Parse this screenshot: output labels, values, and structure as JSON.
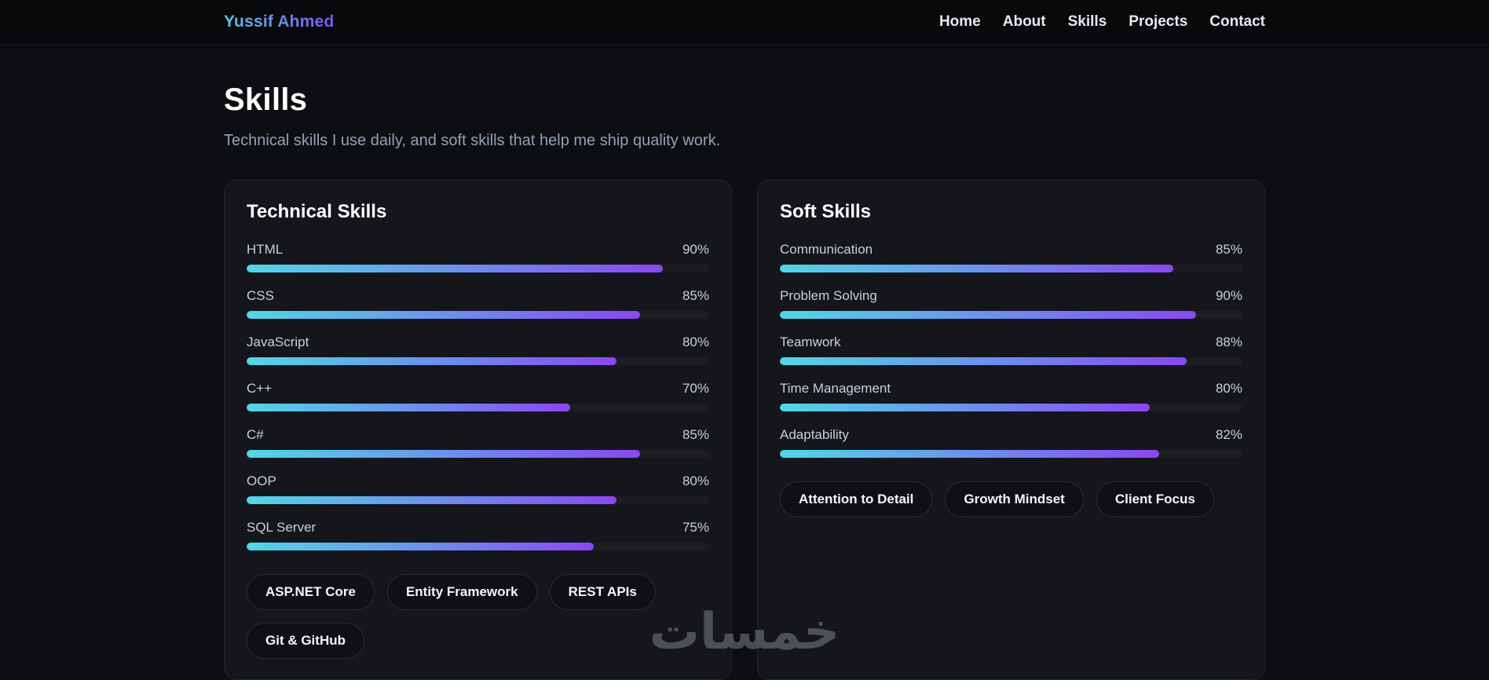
{
  "nav": {
    "logo": "Yussif Ahmed",
    "links": [
      {
        "label": "Home"
      },
      {
        "label": "About"
      },
      {
        "label": "Skills"
      },
      {
        "label": "Projects"
      },
      {
        "label": "Contact"
      }
    ]
  },
  "page": {
    "title": "Skills",
    "subtitle": "Technical skills I use daily, and soft skills that help me ship quality work."
  },
  "cards": [
    {
      "title": "Technical Skills",
      "skills": [
        {
          "name": "HTML",
          "percent": 90
        },
        {
          "name": "CSS",
          "percent": 85
        },
        {
          "name": "JavaScript",
          "percent": 80
        },
        {
          "name": "C++",
          "percent": 70
        },
        {
          "name": "C#",
          "percent": 85
        },
        {
          "name": "OOP",
          "percent": 80
        },
        {
          "name": "SQL Server",
          "percent": 75
        }
      ],
      "tags": [
        "ASP.NET Core",
        "Entity Framework",
        "REST APIs",
        "Git & GitHub"
      ]
    },
    {
      "title": "Soft Skills",
      "skills": [
        {
          "name": "Communication",
          "percent": 85
        },
        {
          "name": "Problem Solving",
          "percent": 90
        },
        {
          "name": "Teamwork",
          "percent": 88
        },
        {
          "name": "Time Management",
          "percent": 80
        },
        {
          "name": "Adaptability",
          "percent": 82
        }
      ],
      "tags": [
        "Attention to Detail",
        "Growth Mindset",
        "Client Focus"
      ]
    }
  ],
  "watermark": "خمسات",
  "colors": {
    "background": "#0d0e11",
    "navbar_background": "#08090b",
    "card_background": "#15161b",
    "card_border": "#22242b",
    "bar_track": "#1b1d23",
    "bar_gradient_start": "#4fd8e8",
    "bar_gradient_mid": "#6d8bf0",
    "bar_gradient_end": "#8b46f7",
    "logo_gradient_start": "#55c8ea",
    "logo_gradient_end": "#7b54f0",
    "subtitle_text": "#93a1b5",
    "skill_text": "#c7d0db"
  }
}
